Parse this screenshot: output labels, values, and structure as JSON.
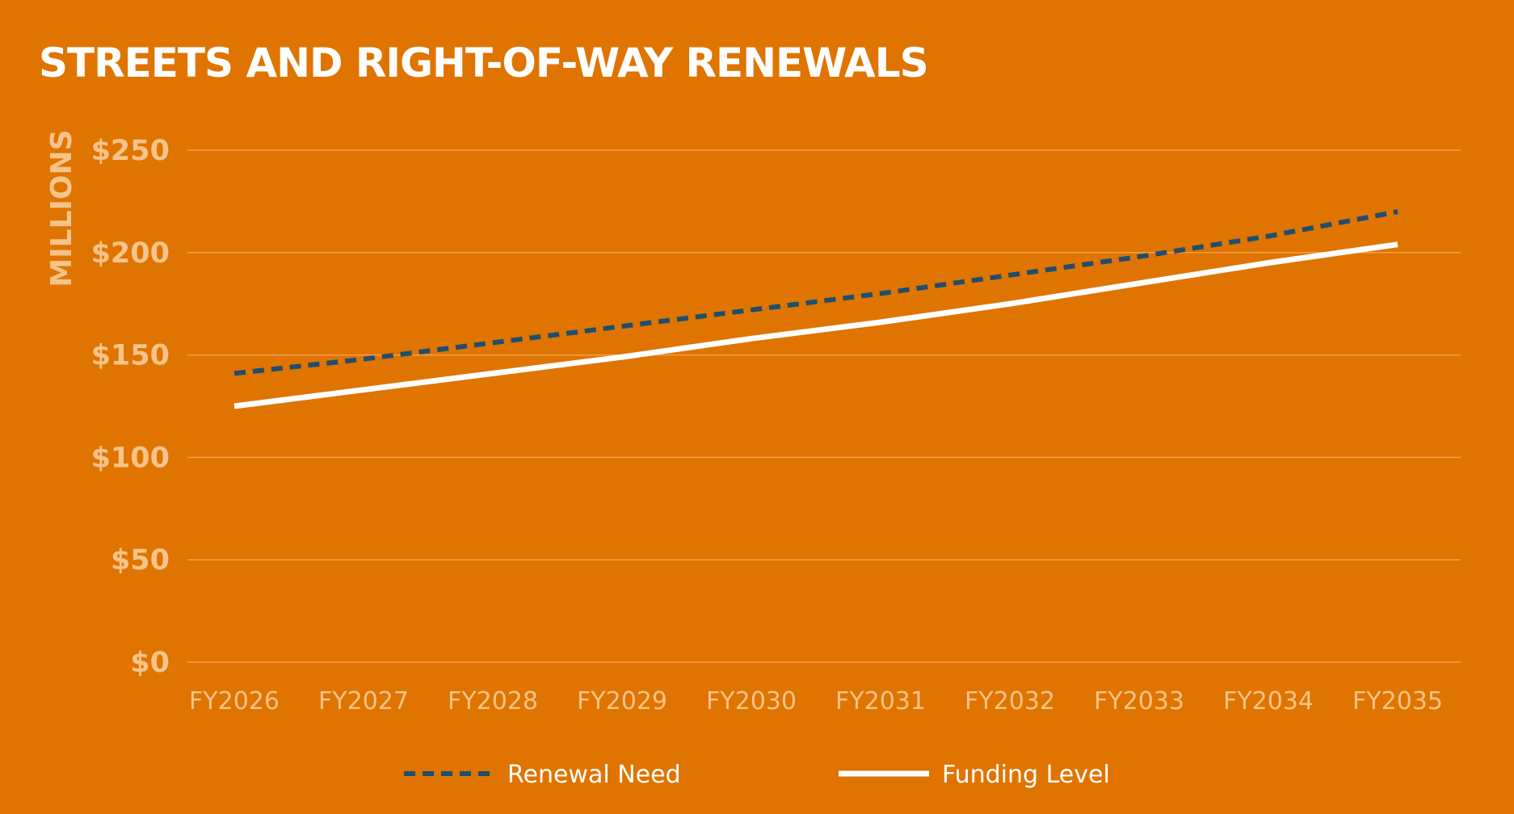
{
  "colors": {
    "background": "#E07400",
    "gridline": "#F3A24A",
    "tick_text": "#F6C48A",
    "renewal_need": "#1F4E6E",
    "funding_level": "#FFFFFF"
  },
  "chart_data": {
    "type": "line",
    "title": "STREETS AND RIGHT-OF-WAY RENEWALS",
    "ylabel": "MILLIONS",
    "xlabel": "",
    "categories": [
      "FY2026",
      "FY2027",
      "FY2028",
      "FY2029",
      "FY2030",
      "FY2031",
      "FY2032",
      "FY2033",
      "FY2034",
      "FY2035"
    ],
    "ylim": [
      0,
      250
    ],
    "yticks": [
      0,
      50,
      100,
      150,
      200,
      250
    ],
    "ytick_labels": [
      "$0",
      "$50",
      "$100",
      "$150",
      "$200",
      "$250"
    ],
    "grid": true,
    "legend_position": "bottom",
    "series": [
      {
        "name": "Renewal Need",
        "style": "dashed",
        "color": "#1F4E6E",
        "values": [
          141,
          148,
          156,
          164,
          172,
          180,
          189,
          198,
          208,
          220
        ]
      },
      {
        "name": "Funding Level",
        "style": "solid",
        "color": "#FFFFFF",
        "values": [
          125,
          133,
          141,
          149,
          158,
          166,
          175,
          185,
          195,
          204
        ]
      }
    ]
  }
}
